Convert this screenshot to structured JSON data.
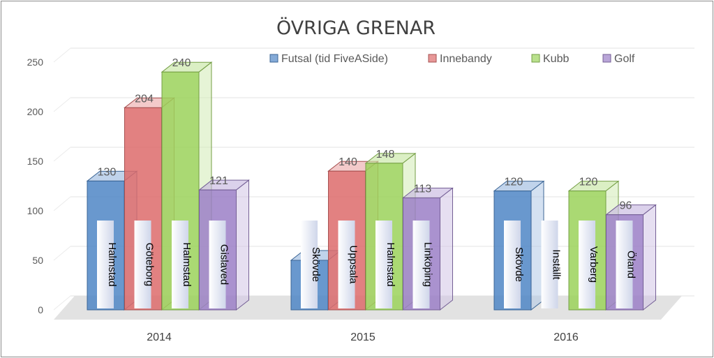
{
  "chart_data": {
    "type": "bar",
    "style": "3d-clustered-column",
    "title": "ÖVRIGA GRENAR",
    "categories": [
      "2014",
      "2015",
      "2016"
    ],
    "ylim": [
      0,
      250
    ],
    "yticks": [
      0,
      50,
      100,
      150,
      200,
      250
    ],
    "grid": true,
    "legend_position": "top-right",
    "series": [
      {
        "name": "Futsal (tid FiveASide)",
        "color": "#4f86c6",
        "values": [
          130,
          50,
          120
        ],
        "labels": [
          "130",
          "",
          "120"
        ],
        "venues": [
          "Halmstad",
          "Skövde",
          "Skövde"
        ]
      },
      {
        "name": "Innebandy",
        "color": "#dd6b6b",
        "values": [
          204,
          140,
          null
        ],
        "labels": [
          "204",
          "140",
          ""
        ],
        "venues": [
          "Göteborg",
          "Uppsala",
          "Inställt"
        ]
      },
      {
        "name": "Kubb",
        "color": "#9bd25a",
        "values": [
          240,
          148,
          120
        ],
        "labels": [
          "240",
          "148",
          "120"
        ],
        "venues": [
          "Halmstad",
          "Halmstad",
          "Varberg"
        ]
      },
      {
        "name": "Golf",
        "color": "#9b7fc7",
        "values": [
          121,
          113,
          96
        ],
        "labels": [
          "121",
          "113",
          "96"
        ],
        "venues": [
          "Gislaved",
          "Linköping",
          "Öland"
        ]
      }
    ]
  }
}
